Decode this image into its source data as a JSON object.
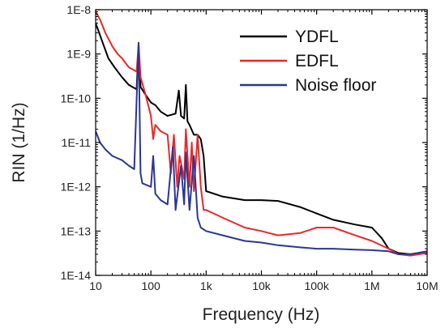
{
  "chart_data": {
    "type": "line",
    "title": "",
    "xlabel": "Frequency (Hz)",
    "ylabel": "RIN (1/Hz)",
    "xscale": "log",
    "yscale": "log",
    "xlim": [
      10,
      10000000
    ],
    "ylim": [
      1e-14,
      1e-08
    ],
    "grid": false,
    "legend_position": "top-right",
    "x_ticks": [
      {
        "value": 10,
        "label": "10"
      },
      {
        "value": 100,
        "label": "100"
      },
      {
        "value": 1000,
        "label": "1k"
      },
      {
        "value": 10000,
        "label": "10k"
      },
      {
        "value": 100000,
        "label": "100k"
      },
      {
        "value": 1000000,
        "label": "1M"
      },
      {
        "value": 10000000,
        "label": "10M"
      }
    ],
    "y_ticks": [
      {
        "value": 1e-14,
        "label": "1E-14"
      },
      {
        "value": 1e-13,
        "label": "1E-13"
      },
      {
        "value": 1e-12,
        "label": "1E-12"
      },
      {
        "value": 1e-11,
        "label": "1E-11"
      },
      {
        "value": 1e-10,
        "label": "1E-10"
      },
      {
        "value": 1e-09,
        "label": "1E-9"
      },
      {
        "value": 1e-08,
        "label": "1E-8"
      }
    ],
    "series": [
      {
        "name": "YDFL",
        "color": "#000000",
        "points": [
          [
            10,
            5e-09
          ],
          [
            13,
            2e-09
          ],
          [
            17,
            8e-10
          ],
          [
            22,
            5e-10
          ],
          [
            30,
            3e-10
          ],
          [
            40,
            2e-10
          ],
          [
            55,
            1.6e-10
          ],
          [
            60,
            1.5e-09
          ],
          [
            65,
            1.8e-10
          ],
          [
            80,
            1.2e-10
          ],
          [
            100,
            8e-11
          ],
          [
            120,
            7e-11
          ],
          [
            150,
            5e-11
          ],
          [
            200,
            4e-11
          ],
          [
            280,
            4.5e-11
          ],
          [
            320,
            1.5e-10
          ],
          [
            350,
            4e-11
          ],
          [
            400,
            3.5e-11
          ],
          [
            430,
            2e-10
          ],
          [
            460,
            3e-11
          ],
          [
            500,
            2.5e-11
          ],
          [
            600,
            1.5e-11
          ],
          [
            700,
            1.5e-11
          ],
          [
            800,
            1.2e-11
          ],
          [
            900,
            5e-12
          ],
          [
            1000,
            8e-13
          ],
          [
            2000,
            6e-13
          ],
          [
            5000,
            5e-13
          ],
          [
            10000,
            5e-13
          ],
          [
            20000,
            4.8e-13
          ],
          [
            50000,
            3.5e-13
          ],
          [
            100000,
            2.5e-13
          ],
          [
            200000,
            1.8e-13
          ],
          [
            500000,
            1.4e-13
          ],
          [
            1000000,
            1.2e-13
          ],
          [
            1500000,
            7e-14
          ],
          [
            2000000,
            4e-14
          ],
          [
            3000000,
            3.2e-14
          ],
          [
            5000000,
            3e-14
          ],
          [
            10000000,
            3.5e-14
          ]
        ]
      },
      {
        "name": "EDFL",
        "color": "#e8282b",
        "points": [
          [
            10,
            9e-09
          ],
          [
            12,
            6e-09
          ],
          [
            15,
            3e-09
          ],
          [
            20,
            1.5e-09
          ],
          [
            25,
            1e-09
          ],
          [
            30,
            8e-10
          ],
          [
            40,
            5e-10
          ],
          [
            55,
            4e-10
          ],
          [
            60,
            1.7e-09
          ],
          [
            65,
            3e-10
          ],
          [
            80,
            1.2e-10
          ],
          [
            100,
            4e-11
          ],
          [
            110,
            1.2e-11
          ],
          [
            120,
            2.5e-11
          ],
          [
            150,
            1.8e-11
          ],
          [
            200,
            1.5e-11
          ],
          [
            230,
            2e-12
          ],
          [
            260,
            1.5e-11
          ],
          [
            300,
            1e-12
          ],
          [
            330,
            5e-12
          ],
          [
            400,
            1.5e-12
          ],
          [
            430,
            2e-11
          ],
          [
            500,
            1e-12
          ],
          [
            550,
            1e-11
          ],
          [
            600,
            8e-13
          ],
          [
            700,
            1.5e-11
          ],
          [
            800,
            1e-12
          ],
          [
            900,
            3e-13
          ],
          [
            1000,
            3e-13
          ],
          [
            2000,
            2e-13
          ],
          [
            5000,
            1.2e-13
          ],
          [
            10000,
            1e-13
          ],
          [
            20000,
            8e-14
          ],
          [
            50000,
            9e-14
          ],
          [
            100000,
            1.2e-13
          ],
          [
            200000,
            1.2e-13
          ],
          [
            500000,
            8e-14
          ],
          [
            1000000,
            6e-14
          ],
          [
            2000000,
            4e-14
          ],
          [
            3000000,
            3e-14
          ],
          [
            5000000,
            2.8e-14
          ],
          [
            10000000,
            3.2e-14
          ]
        ]
      },
      {
        "name": "Noise floor",
        "color": "#2a3694",
        "points": [
          [
            10,
            1.8e-11
          ],
          [
            12,
            1e-11
          ],
          [
            15,
            7e-12
          ],
          [
            20,
            5e-12
          ],
          [
            30,
            4e-12
          ],
          [
            40,
            3e-12
          ],
          [
            50,
            2.5e-12
          ],
          [
            60,
            1.8e-09
          ],
          [
            65,
            2e-12
          ],
          [
            70,
            1.2e-12
          ],
          [
            100,
            1e-12
          ],
          [
            110,
            5e-12
          ],
          [
            120,
            7e-13
          ],
          [
            150,
            5e-13
          ],
          [
            200,
            4e-13
          ],
          [
            250,
            8e-12
          ],
          [
            280,
            3e-13
          ],
          [
            350,
            3e-12
          ],
          [
            400,
            4e-13
          ],
          [
            430,
            6e-12
          ],
          [
            500,
            3e-13
          ],
          [
            600,
            5e-12
          ],
          [
            700,
            2e-13
          ],
          [
            800,
            1.2e-13
          ],
          [
            1000,
            1e-13
          ],
          [
            2000,
            8e-14
          ],
          [
            5000,
            6e-14
          ],
          [
            10000,
            5.5e-14
          ],
          [
            20000,
            4.8e-14
          ],
          [
            50000,
            4.3e-14
          ],
          [
            100000,
            4e-14
          ],
          [
            200000,
            4e-14
          ],
          [
            500000,
            3.8e-14
          ],
          [
            1000000,
            3.7e-14
          ],
          [
            2000000,
            3.5e-14
          ],
          [
            3000000,
            3e-14
          ],
          [
            5000000,
            3e-14
          ],
          [
            10000000,
            3.5e-14
          ]
        ]
      }
    ]
  }
}
